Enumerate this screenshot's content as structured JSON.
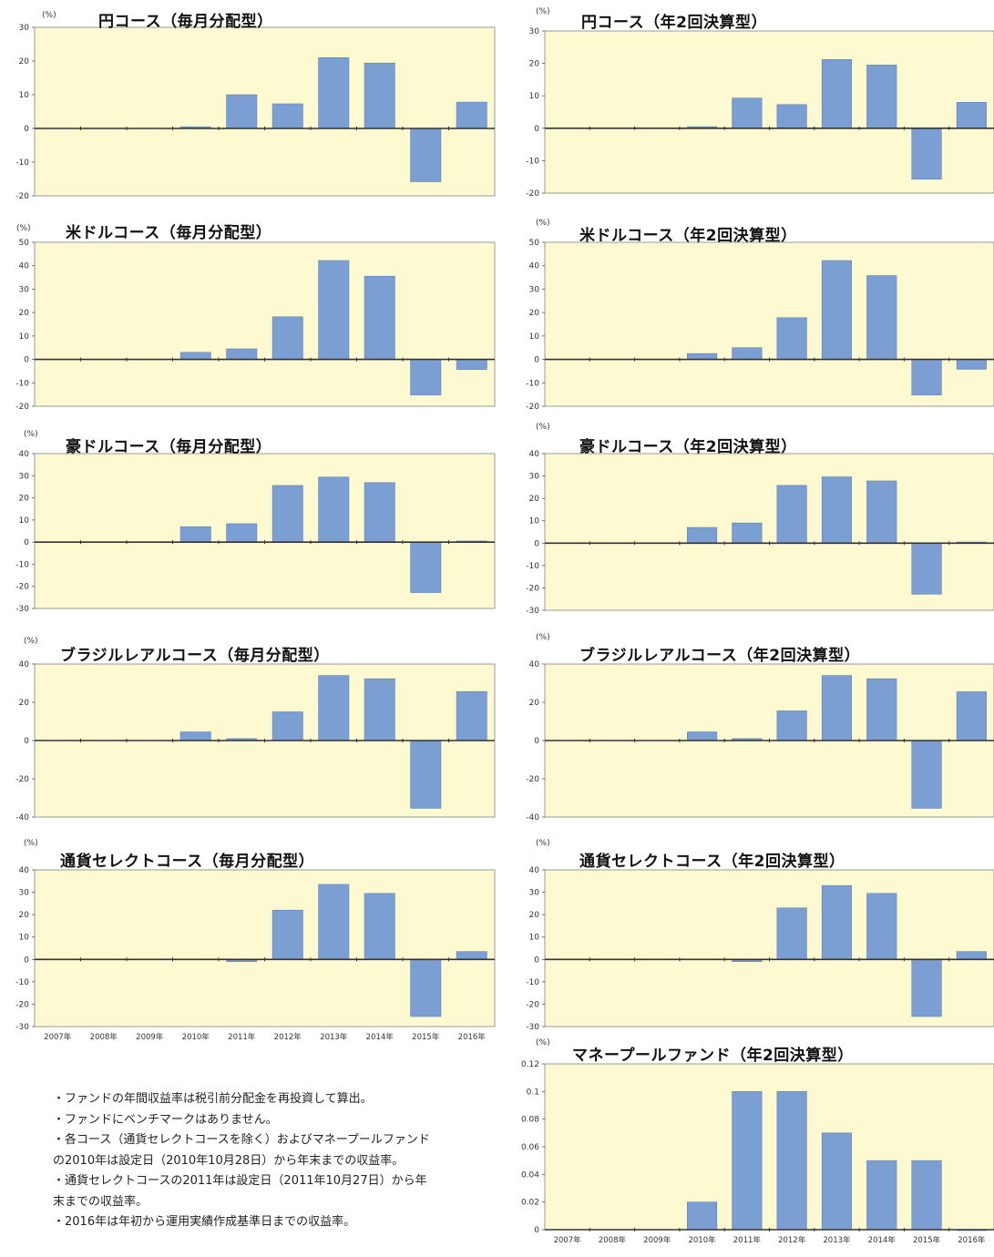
{
  "years": [
    "2007年",
    "2008年",
    "2009年",
    "2010年",
    "2011年",
    "2012年",
    "2013年",
    "2014年",
    "2015年",
    "2016年"
  ],
  "unit_pct": "(%)",
  "colors": {
    "plot_bg": "#fdfad2",
    "bar": "#7c9fd3",
    "bar_edge": "#5f80b5",
    "axis": "#333333"
  },
  "chart_data": [
    {
      "type": "bar",
      "title": "円コース（毎月分配型）",
      "unit": "(%)",
      "ylim": [
        -20,
        30
      ],
      "ticks": [
        30,
        20,
        10,
        0,
        -10,
        -20
      ],
      "categories": [
        "2007年",
        "2008年",
        "2009年",
        "2010年",
        "2011年",
        "2012年",
        "2013年",
        "2014年",
        "2015年",
        "2016年"
      ],
      "values": [
        null,
        null,
        null,
        0.5,
        10,
        7.3,
        21,
        19.4,
        -15.8,
        7.8
      ]
    },
    {
      "type": "bar",
      "title": "円コース（年2回決算型）",
      "unit": "(%)",
      "ylim": [
        -20,
        30
      ],
      "ticks": [
        30,
        20,
        10,
        0,
        -10,
        -20
      ],
      "categories": [
        "2007年",
        "2008年",
        "2009年",
        "2010年",
        "2011年",
        "2012年",
        "2013年",
        "2014年",
        "2015年",
        "2016年"
      ],
      "values": [
        null,
        null,
        null,
        0.5,
        9.3,
        7.3,
        21.2,
        19.5,
        -15.7,
        8
      ]
    },
    {
      "type": "bar",
      "title": "米ドルコース（毎月分配型）",
      "unit": "(%)",
      "ylim": [
        -20,
        50
      ],
      "ticks": [
        50,
        40,
        30,
        20,
        10,
        0,
        -10,
        -20
      ],
      "categories": [
        "2007年",
        "2008年",
        "2009年",
        "2010年",
        "2011年",
        "2012年",
        "2013年",
        "2014年",
        "2015年",
        "2016年"
      ],
      "values": [
        null,
        null,
        null,
        3,
        4.5,
        18.2,
        42.2,
        35.5,
        -15.2,
        -4.3
      ]
    },
    {
      "type": "bar",
      "title": "米ドルコース（年2回決算型）",
      "unit": "(%)",
      "ylim": [
        -20,
        50
      ],
      "ticks": [
        50,
        40,
        30,
        20,
        10,
        0,
        -10,
        -20
      ],
      "categories": [
        "2007年",
        "2008年",
        "2009年",
        "2010年",
        "2011年",
        "2012年",
        "2013年",
        "2014年",
        "2015年",
        "2016年"
      ],
      "values": [
        null,
        null,
        null,
        2.5,
        5,
        17.8,
        42.2,
        35.8,
        -15.2,
        -4.2
      ]
    },
    {
      "type": "bar",
      "title": "豪ドルコース（毎月分配型）",
      "unit": "(%)",
      "ylim": [
        -30,
        40
      ],
      "ticks": [
        40,
        30,
        20,
        10,
        0,
        -10,
        -20,
        -30
      ],
      "categories": [
        "2007年",
        "2008年",
        "2009年",
        "2010年",
        "2011年",
        "2012年",
        "2013年",
        "2014年",
        "2015年",
        "2016年"
      ],
      "values": [
        null,
        null,
        null,
        7,
        8.3,
        25.6,
        29.4,
        26.9,
        -22.8,
        0.5
      ]
    },
    {
      "type": "bar",
      "title": "豪ドルコース（年2回決算型）",
      "unit": "(%)",
      "ylim": [
        -30,
        40
      ],
      "ticks": [
        40,
        30,
        20,
        10,
        0,
        -10,
        -20,
        -30
      ],
      "categories": [
        "2007年",
        "2008年",
        "2009年",
        "2010年",
        "2011年",
        "2012年",
        "2013年",
        "2014年",
        "2015年",
        "2016年"
      ],
      "values": [
        null,
        null,
        null,
        7,
        9,
        25.8,
        29.6,
        27.8,
        -22.8,
        0.5
      ]
    },
    {
      "type": "bar",
      "title": "ブラジルレアルコース（毎月分配型）",
      "unit": "(%)",
      "ylim": [
        -40,
        40
      ],
      "ticks": [
        40,
        20,
        0,
        -20,
        -40
      ],
      "categories": [
        "2007年",
        "2008年",
        "2009年",
        "2010年",
        "2011年",
        "2012年",
        "2013年",
        "2014年",
        "2015年",
        "2016年"
      ],
      "values": [
        null,
        null,
        null,
        4.5,
        1,
        15,
        34,
        32.3,
        -35.4,
        25.6
      ]
    },
    {
      "type": "bar",
      "title": "ブラジルレアルコース（年2回決算型）",
      "unit": "(%)",
      "ylim": [
        -40,
        40
      ],
      "ticks": [
        40,
        20,
        0,
        -20,
        -40
      ],
      "categories": [
        "2007年",
        "2008年",
        "2009年",
        "2010年",
        "2011年",
        "2012年",
        "2013年",
        "2014年",
        "2015年",
        "2016年"
      ],
      "values": [
        null,
        null,
        null,
        4.5,
        1,
        15.5,
        34,
        32.3,
        -35.4,
        25.5
      ]
    },
    {
      "type": "bar",
      "title": "通貨セレクトコース（毎月分配型）",
      "unit": "(%)",
      "ylim": [
        -30,
        40
      ],
      "ticks": [
        40,
        30,
        20,
        10,
        0,
        -10,
        -20,
        -30
      ],
      "categories": [
        "2007年",
        "2008年",
        "2009年",
        "2010年",
        "2011年",
        "2012年",
        "2013年",
        "2014年",
        "2015年",
        "2016年"
      ],
      "values": [
        null,
        null,
        null,
        null,
        -1,
        22,
        33.5,
        29.5,
        -25.5,
        3.5
      ]
    },
    {
      "type": "bar",
      "title": "通貨セレクトコース（年2回決算型）",
      "unit": "(%)",
      "ylim": [
        -30,
        40
      ],
      "ticks": [
        40,
        30,
        20,
        10,
        0,
        -10,
        -20,
        -30
      ],
      "categories": [
        "2007年",
        "2008年",
        "2009年",
        "2010年",
        "2011年",
        "2012年",
        "2013年",
        "2014年",
        "2015年",
        "2016年"
      ],
      "values": [
        null,
        null,
        null,
        null,
        -1,
        23,
        33,
        29.5,
        -25.5,
        3.5
      ]
    },
    {
      "type": "bar",
      "title": "マネープールファンド（年2回決算型）",
      "unit": "(%)",
      "ylim": [
        0,
        0.12
      ],
      "ticks": [
        0.12,
        0.1,
        0.08,
        0.06,
        0.04,
        0.02,
        0
      ],
      "categories": [
        "2007年",
        "2008年",
        "2009年",
        "2010年",
        "2011年",
        "2012年",
        "2013年",
        "2014年",
        "2015年",
        "2016年"
      ],
      "values": [
        null,
        null,
        null,
        0.02,
        0.1,
        0.1,
        0.07,
        0.05,
        0.05,
        0
      ]
    }
  ],
  "notes": [
    "・ファンドの年間収益率は税引前分配金を再投資して算出。",
    "・ファンドにベンチマークはありません。",
    "・各コース（通貨セレクトコースを除く）およびマネープールファンド",
    "の2010年は設定日（2010年10月28日）から年末までの収益率。",
    "・通貨セレクトコースの2011年は設定日（2011年10月27日）から年",
    "末までの収益率。",
    "・2016年は年初から運用実績作成基準日までの収益率。"
  ]
}
